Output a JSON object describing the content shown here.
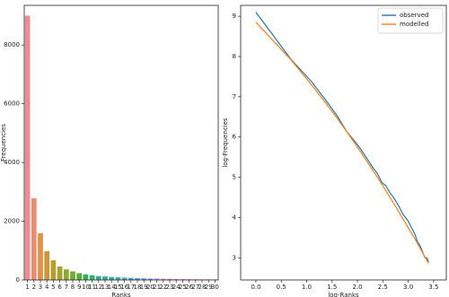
{
  "chart_data": [
    {
      "type": "bar",
      "xlabel": "Ranks",
      "ylabel": "Frequencies",
      "categories": [
        "1",
        "2",
        "3",
        "4",
        "5",
        "6",
        "7",
        "8",
        "9",
        "10",
        "11",
        "12",
        "13",
        "14",
        "15",
        "16",
        "17",
        "18",
        "19",
        "20",
        "21",
        "22",
        "23",
        "24",
        "25",
        "26",
        "27",
        "28",
        "29",
        "30"
      ],
      "values": [
        9000,
        2780,
        1590,
        980,
        670,
        460,
        360,
        290,
        230,
        190,
        160,
        130,
        120,
        100,
        90,
        80,
        70,
        60,
        55,
        50,
        45,
        40,
        35,
        30,
        28,
        25,
        22,
        20,
        20,
        18
      ],
      "colors": [
        "#f08b93",
        "#ec8c6e",
        "#de9149",
        "#c99838",
        "#b89e32",
        "#a5a331",
        "#90a731",
        "#74ab31",
        "#4fb031",
        "#32b258",
        "#34b077",
        "#35ae89",
        "#36ad97",
        "#37aca3",
        "#38abaf",
        "#39a9bb",
        "#3ba6ca",
        "#3ea2d9",
        "#5b9be8",
        "#7d94ef",
        "#988ff2",
        "#ae8af3",
        "#c185f3",
        "#d47ff2",
        "#e47aec",
        "#ee7bd9",
        "#f27fc7",
        "#f483b5",
        "#f487a5",
        "#f38a96"
      ],
      "ylim": [
        0,
        9350
      ],
      "yticks": [
        0,
        2000,
        4000,
        6000,
        8000
      ]
    },
    {
      "type": "line",
      "xlabel": "log-Ranks",
      "ylabel": "log-Frequencies",
      "x": [
        0,
        0.69,
        1.1,
        1.39,
        1.61,
        1.79,
        1.95,
        2.08,
        2.2,
        2.3,
        2.4,
        2.48,
        2.56,
        2.64,
        2.71,
        2.77,
        2.83,
        2.89,
        2.94,
        3.0,
        3.04,
        3.09,
        3.14,
        3.18,
        3.22,
        3.26,
        3.3,
        3.33,
        3.37,
        3.4
      ],
      "series": [
        {
          "name": "observed",
          "color": "#1f77b4",
          "values": [
            9.1,
            7.93,
            7.37,
            6.89,
            6.51,
            6.13,
            5.89,
            5.67,
            5.44,
            5.25,
            5.08,
            4.87,
            4.79,
            4.61,
            4.5,
            4.38,
            4.25,
            4.09,
            4.01,
            3.91,
            3.81,
            3.69,
            3.56,
            3.4,
            3.33,
            3.22,
            3.09,
            3.0,
            3.0,
            2.89
          ]
        },
        {
          "name": "modelled",
          "color": "#ff7f0e",
          "values": [
            8.85,
            7.92,
            7.29,
            6.82,
            6.45,
            6.13,
            5.84,
            5.6,
            5.37,
            5.18,
            4.99,
            4.83,
            4.67,
            4.5,
            4.36,
            4.24,
            4.11,
            3.98,
            3.88,
            3.75,
            3.66,
            3.56,
            3.45,
            3.36,
            3.27,
            3.18,
            3.09,
            3.02,
            2.93,
            2.87
          ]
        }
      ],
      "xlim": [
        -0.3,
        3.75
      ],
      "xticks": [
        {
          "value": 0,
          "label": "0.0"
        },
        {
          "value": 0.5,
          "label": "0.5"
        },
        {
          "value": 1,
          "label": "1.0"
        },
        {
          "value": 1.5,
          "label": "1.5"
        },
        {
          "value": 2,
          "label": "2.0"
        },
        {
          "value": 2.5,
          "label": "2.5"
        },
        {
          "value": 3,
          "label": "3.0"
        },
        {
          "value": 3.5,
          "label": "3.5"
        }
      ],
      "ylim": [
        2.45,
        9.27
      ],
      "yticks": [
        3,
        4,
        5,
        6,
        7,
        8,
        9
      ],
      "legend": "upper right"
    }
  ]
}
